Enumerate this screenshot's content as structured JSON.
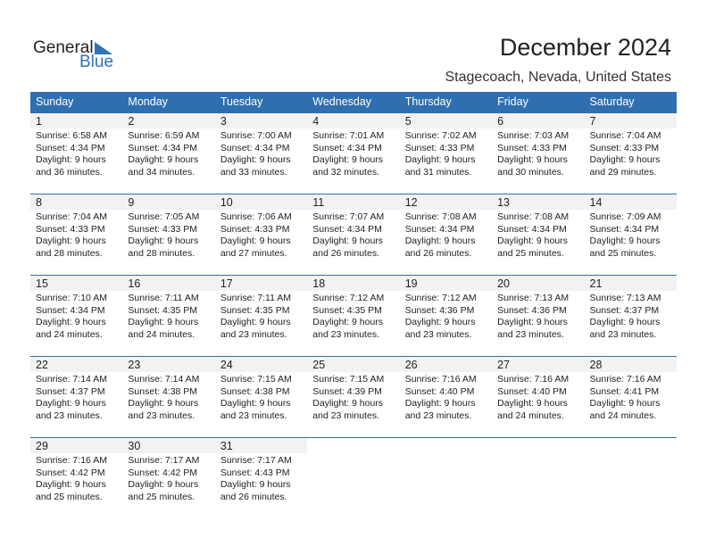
{
  "logo": {
    "general": "General",
    "blue": "Blue"
  },
  "title": "December 2024",
  "location": "Stagecoach, Nevada, United States",
  "colors": {
    "header": "#2f6fb0",
    "accent": "#2f72b5",
    "day_bar": "#f2f2f2"
  },
  "weekdays": [
    "Sunday",
    "Monday",
    "Tuesday",
    "Wednesday",
    "Thursday",
    "Friday",
    "Saturday"
  ],
  "weeks": [
    [
      {
        "day": "1",
        "sunrise": "Sunrise: 6:58 AM",
        "sunset": "Sunset: 4:34 PM",
        "daylight1": "Daylight: 9 hours",
        "daylight2": "and 36 minutes."
      },
      {
        "day": "2",
        "sunrise": "Sunrise: 6:59 AM",
        "sunset": "Sunset: 4:34 PM",
        "daylight1": "Daylight: 9 hours",
        "daylight2": "and 34 minutes."
      },
      {
        "day": "3",
        "sunrise": "Sunrise: 7:00 AM",
        "sunset": "Sunset: 4:34 PM",
        "daylight1": "Daylight: 9 hours",
        "daylight2": "and 33 minutes."
      },
      {
        "day": "4",
        "sunrise": "Sunrise: 7:01 AM",
        "sunset": "Sunset: 4:34 PM",
        "daylight1": "Daylight: 9 hours",
        "daylight2": "and 32 minutes."
      },
      {
        "day": "5",
        "sunrise": "Sunrise: 7:02 AM",
        "sunset": "Sunset: 4:33 PM",
        "daylight1": "Daylight: 9 hours",
        "daylight2": "and 31 minutes."
      },
      {
        "day": "6",
        "sunrise": "Sunrise: 7:03 AM",
        "sunset": "Sunset: 4:33 PM",
        "daylight1": "Daylight: 9 hours",
        "daylight2": "and 30 minutes."
      },
      {
        "day": "7",
        "sunrise": "Sunrise: 7:04 AM",
        "sunset": "Sunset: 4:33 PM",
        "daylight1": "Daylight: 9 hours",
        "daylight2": "and 29 minutes."
      }
    ],
    [
      {
        "day": "8",
        "sunrise": "Sunrise: 7:04 AM",
        "sunset": "Sunset: 4:33 PM",
        "daylight1": "Daylight: 9 hours",
        "daylight2": "and 28 minutes."
      },
      {
        "day": "9",
        "sunrise": "Sunrise: 7:05 AM",
        "sunset": "Sunset: 4:33 PM",
        "daylight1": "Daylight: 9 hours",
        "daylight2": "and 28 minutes."
      },
      {
        "day": "10",
        "sunrise": "Sunrise: 7:06 AM",
        "sunset": "Sunset: 4:33 PM",
        "daylight1": "Daylight: 9 hours",
        "daylight2": "and 27 minutes."
      },
      {
        "day": "11",
        "sunrise": "Sunrise: 7:07 AM",
        "sunset": "Sunset: 4:34 PM",
        "daylight1": "Daylight: 9 hours",
        "daylight2": "and 26 minutes."
      },
      {
        "day": "12",
        "sunrise": "Sunrise: 7:08 AM",
        "sunset": "Sunset: 4:34 PM",
        "daylight1": "Daylight: 9 hours",
        "daylight2": "and 26 minutes."
      },
      {
        "day": "13",
        "sunrise": "Sunrise: 7:08 AM",
        "sunset": "Sunset: 4:34 PM",
        "daylight1": "Daylight: 9 hours",
        "daylight2": "and 25 minutes."
      },
      {
        "day": "14",
        "sunrise": "Sunrise: 7:09 AM",
        "sunset": "Sunset: 4:34 PM",
        "daylight1": "Daylight: 9 hours",
        "daylight2": "and 25 minutes."
      }
    ],
    [
      {
        "day": "15",
        "sunrise": "Sunrise: 7:10 AM",
        "sunset": "Sunset: 4:34 PM",
        "daylight1": "Daylight: 9 hours",
        "daylight2": "and 24 minutes."
      },
      {
        "day": "16",
        "sunrise": "Sunrise: 7:11 AM",
        "sunset": "Sunset: 4:35 PM",
        "daylight1": "Daylight: 9 hours",
        "daylight2": "and 24 minutes."
      },
      {
        "day": "17",
        "sunrise": "Sunrise: 7:11 AM",
        "sunset": "Sunset: 4:35 PM",
        "daylight1": "Daylight: 9 hours",
        "daylight2": "and 23 minutes."
      },
      {
        "day": "18",
        "sunrise": "Sunrise: 7:12 AM",
        "sunset": "Sunset: 4:35 PM",
        "daylight1": "Daylight: 9 hours",
        "daylight2": "and 23 minutes."
      },
      {
        "day": "19",
        "sunrise": "Sunrise: 7:12 AM",
        "sunset": "Sunset: 4:36 PM",
        "daylight1": "Daylight: 9 hours",
        "daylight2": "and 23 minutes."
      },
      {
        "day": "20",
        "sunrise": "Sunrise: 7:13 AM",
        "sunset": "Sunset: 4:36 PM",
        "daylight1": "Daylight: 9 hours",
        "daylight2": "and 23 minutes."
      },
      {
        "day": "21",
        "sunrise": "Sunrise: 7:13 AM",
        "sunset": "Sunset: 4:37 PM",
        "daylight1": "Daylight: 9 hours",
        "daylight2": "and 23 minutes."
      }
    ],
    [
      {
        "day": "22",
        "sunrise": "Sunrise: 7:14 AM",
        "sunset": "Sunset: 4:37 PM",
        "daylight1": "Daylight: 9 hours",
        "daylight2": "and 23 minutes."
      },
      {
        "day": "23",
        "sunrise": "Sunrise: 7:14 AM",
        "sunset": "Sunset: 4:38 PM",
        "daylight1": "Daylight: 9 hours",
        "daylight2": "and 23 minutes."
      },
      {
        "day": "24",
        "sunrise": "Sunrise: 7:15 AM",
        "sunset": "Sunset: 4:38 PM",
        "daylight1": "Daylight: 9 hours",
        "daylight2": "and 23 minutes."
      },
      {
        "day": "25",
        "sunrise": "Sunrise: 7:15 AM",
        "sunset": "Sunset: 4:39 PM",
        "daylight1": "Daylight: 9 hours",
        "daylight2": "and 23 minutes."
      },
      {
        "day": "26",
        "sunrise": "Sunrise: 7:16 AM",
        "sunset": "Sunset: 4:40 PM",
        "daylight1": "Daylight: 9 hours",
        "daylight2": "and 23 minutes."
      },
      {
        "day": "27",
        "sunrise": "Sunrise: 7:16 AM",
        "sunset": "Sunset: 4:40 PM",
        "daylight1": "Daylight: 9 hours",
        "daylight2": "and 24 minutes."
      },
      {
        "day": "28",
        "sunrise": "Sunrise: 7:16 AM",
        "sunset": "Sunset: 4:41 PM",
        "daylight1": "Daylight: 9 hours",
        "daylight2": "and 24 minutes."
      }
    ],
    [
      {
        "day": "29",
        "sunrise": "Sunrise: 7:16 AM",
        "sunset": "Sunset: 4:42 PM",
        "daylight1": "Daylight: 9 hours",
        "daylight2": "and 25 minutes."
      },
      {
        "day": "30",
        "sunrise": "Sunrise: 7:17 AM",
        "sunset": "Sunset: 4:42 PM",
        "daylight1": "Daylight: 9 hours",
        "daylight2": "and 25 minutes."
      },
      {
        "day": "31",
        "sunrise": "Sunrise: 7:17 AM",
        "sunset": "Sunset: 4:43 PM",
        "daylight1": "Daylight: 9 hours",
        "daylight2": "and 26 minutes."
      },
      null,
      null,
      null,
      null
    ]
  ]
}
